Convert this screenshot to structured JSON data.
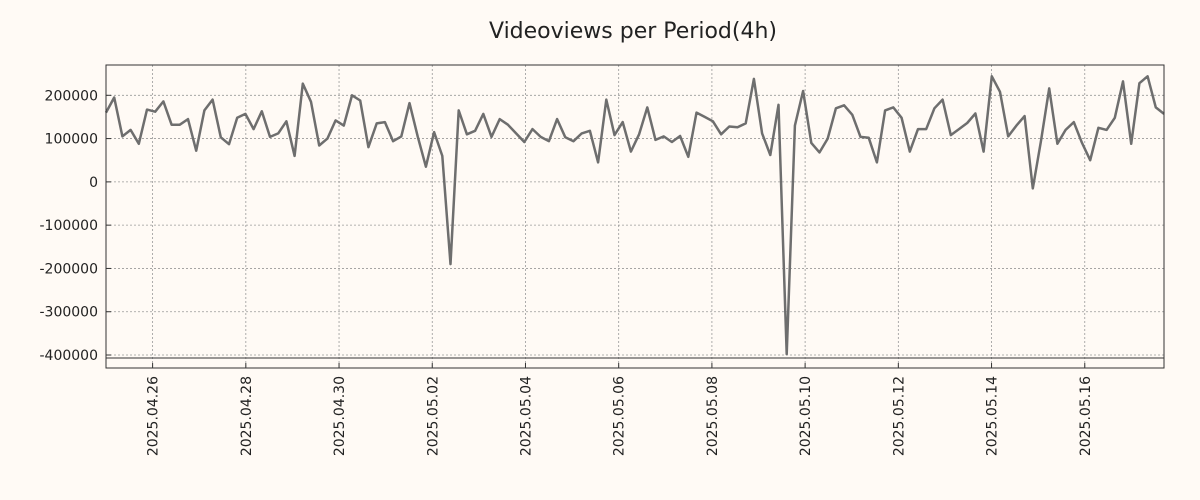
{
  "chart_data": {
    "type": "line",
    "title": "Videoviews per Period(4h)",
    "xlabel": "",
    "ylabel": "",
    "ylim": [
      -430000,
      270000
    ],
    "yticks": [
      200000,
      100000,
      0,
      -100000,
      -200000,
      -300000,
      -400000
    ],
    "ytick_labels": [
      "200000",
      "100000",
      "0",
      "-100000",
      "-200000",
      "-300000",
      "-400000"
    ],
    "x_start": 0,
    "x_end": 22.7,
    "xticks": [
      1,
      3,
      5,
      7,
      9,
      11,
      13,
      15,
      17,
      19,
      21,
      23
    ],
    "xtick_labels": [
      "2025.04.26",
      "2025.04.28",
      "2025.04.30",
      "2025.05.02",
      "2025.05.04",
      "2025.05.06",
      "2025.05.08",
      "2025.05.10",
      "2025.05.12",
      "2025.05.14",
      "2025.05.16"
    ],
    "grid": true,
    "series": [
      {
        "name": "Videoviews",
        "color": "#6e6e6e",
        "values": [
          160000,
          195000,
          105000,
          120000,
          88000,
          167000,
          162000,
          186000,
          132000,
          132000,
          145000,
          72000,
          165000,
          190000,
          103000,
          87000,
          148000,
          157000,
          122000,
          163000,
          104000,
          112000,
          140000,
          60000,
          227000,
          185000,
          84000,
          100000,
          142000,
          130000,
          200000,
          188000,
          80000,
          135000,
          138000,
          94000,
          105000,
          182000,
          105000,
          35000,
          115000,
          60000,
          -190000,
          165000,
          110000,
          118000,
          157000,
          104000,
          145000,
          132000,
          112000,
          92000,
          122000,
          104000,
          94000,
          145000,
          103000,
          94000,
          112000,
          118000,
          45000,
          190000,
          108000,
          138000,
          70000,
          110000,
          172000,
          97000,
          105000,
          92000,
          106000,
          58000,
          160000,
          150000,
          140000,
          110000,
          128000,
          126000,
          135000,
          238000,
          112000,
          62000,
          178000,
          -398000,
          130000,
          210000,
          90000,
          68000,
          100000,
          170000,
          177000,
          155000,
          104000,
          102000,
          45000,
          165000,
          172000,
          148000,
          70000,
          122000,
          122000,
          170000,
          190000,
          108000,
          122000,
          136000,
          158000,
          70000,
          244000,
          208000,
          105000,
          130000,
          152000,
          -15000,
          95000,
          216000,
          88000,
          120000,
          138000,
          90000,
          50000,
          125000,
          120000,
          148000,
          232000,
          88000,
          228000,
          244000,
          172000,
          157000
        ]
      }
    ]
  }
}
